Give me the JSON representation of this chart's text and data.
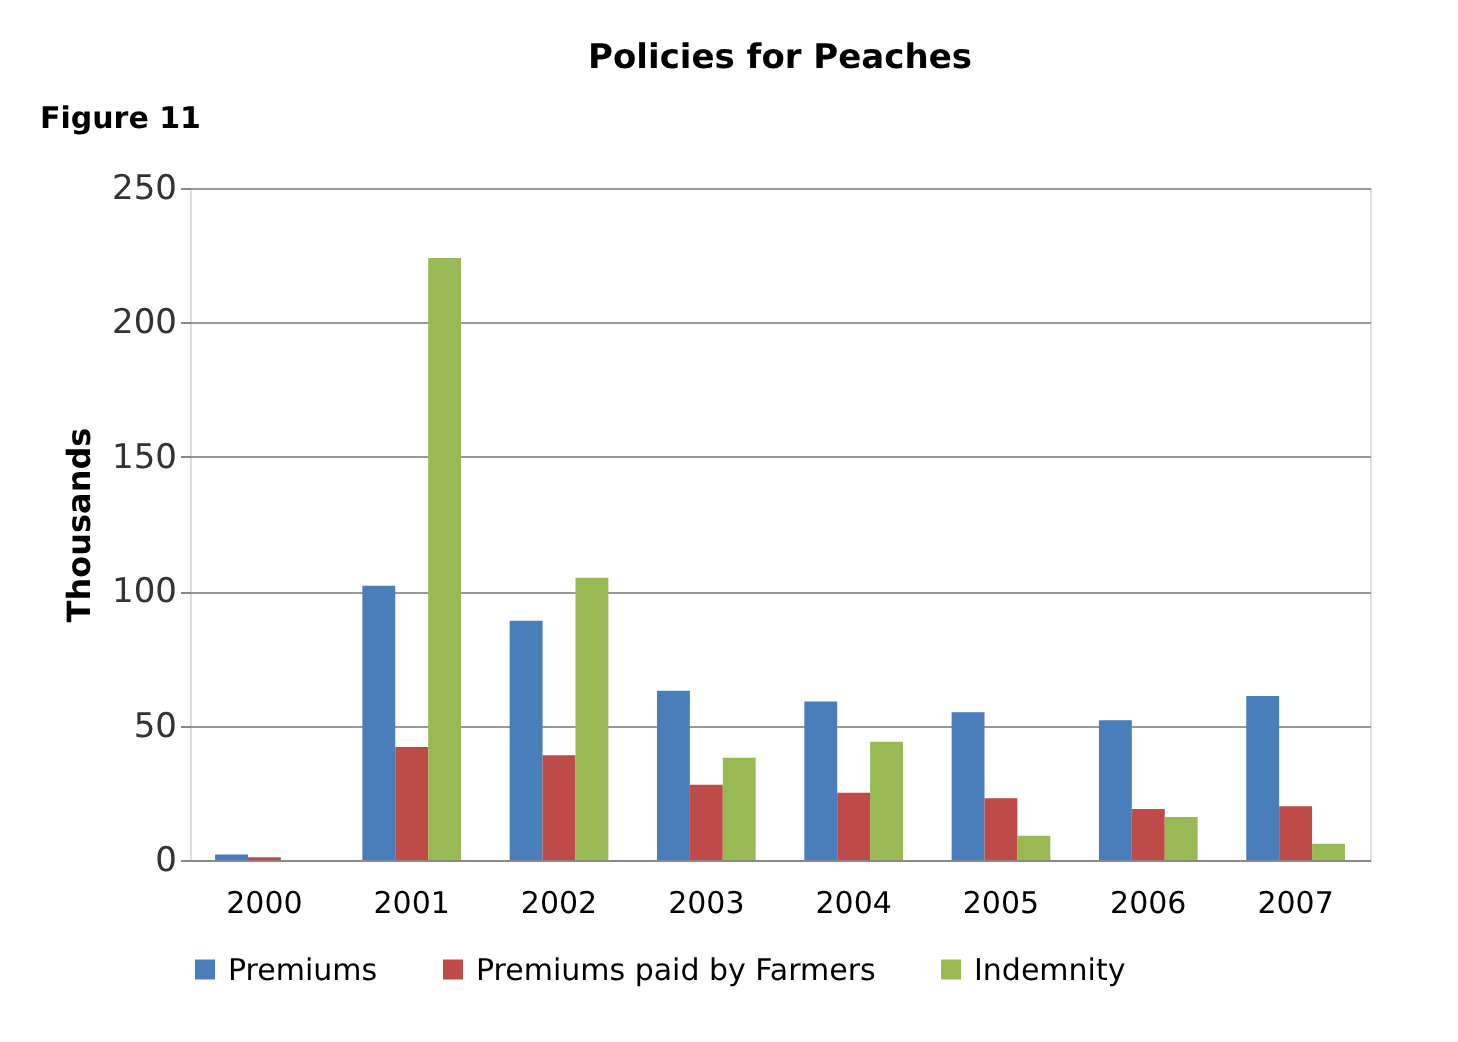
{
  "chart_data": {
    "type": "bar",
    "title": "Policies for Peaches",
    "ylabel": "Thousands",
    "annotations": [
      "Figure 11"
    ],
    "categories": [
      "2000",
      "2001",
      "2002",
      "2003",
      "2004",
      "2005",
      "2006",
      "2007"
    ],
    "series": [
      {
        "name": "Premiums",
        "color": "#4a7ebb",
        "values": [
          2,
          102,
          89,
          63,
          59,
          55,
          52,
          61
        ]
      },
      {
        "name": "Premiums paid by Farmers",
        "color": "#be4b48",
        "values": [
          1,
          42,
          39,
          28,
          25,
          23,
          19,
          20
        ]
      },
      {
        "name": "Indemnity",
        "color": "#98b954",
        "values": [
          0,
          224,
          105,
          38,
          44,
          9,
          16,
          6
        ]
      }
    ],
    "ylim": [
      0,
      250
    ],
    "yticks": [
      0,
      50,
      100,
      150,
      200,
      250
    ],
    "grid": "y",
    "legend": "bottom"
  }
}
